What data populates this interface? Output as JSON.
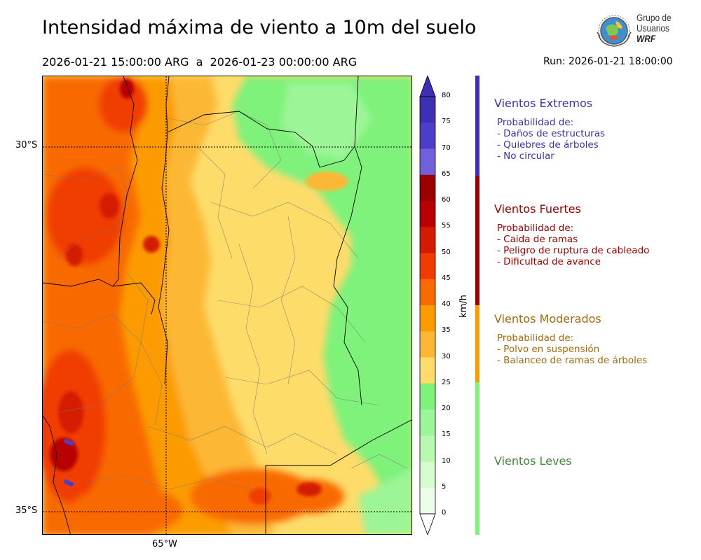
{
  "title": "Intensidad máxima de viento a 10m del suelo",
  "period": "2026-01-21 15:00:00 ARG  a  2026-01-23 00:00:00 ARG",
  "run": "Run: 2026-01-21 18:00:00",
  "logo": {
    "line1": "Grupo de",
    "line2": "Usuarios",
    "line3": "WRF"
  },
  "map": {
    "lat_labels": [
      "30°S",
      "35°S"
    ],
    "lon_labels": [
      "65°W"
    ]
  },
  "colorbar": {
    "unit": "km/h",
    "ticks": [
      "80",
      "75",
      "70",
      "65",
      "60",
      "55",
      "50",
      "45",
      "40",
      "35",
      "30",
      "25",
      "20",
      "15",
      "10",
      "5",
      "0"
    ],
    "colors": [
      "#3f2fb5",
      "#4c3ec8",
      "#7160dc",
      "#9a0000",
      "#b80000",
      "#d41a00",
      "#f03c00",
      "#f86a00",
      "#fb9b00",
      "#fcb835",
      "#fddc6a",
      "#7ef27a",
      "#9cf596",
      "#b9f8b2",
      "#d5fbcf",
      "#ecfde9"
    ]
  },
  "legend": [
    {
      "name": "Vientos Extremos",
      "color": "#3f2fb5",
      "lines": [
        "Probabilidad de:",
        "- Daños de estructuras",
        "- Quiebres de árboles",
        "- No circular"
      ]
    },
    {
      "name": "Vientos Fuertes",
      "color": "#9a0000",
      "lines": [
        "Probabilidad de:",
        "- Caida de ramas",
        "- Peligro de ruptura de cableado",
        "- Dificultad de avance"
      ]
    },
    {
      "name": "Vientos Moderados",
      "color": "#a8690a",
      "lines": [
        "Probabilidad de:",
        "- Polvo en suspensión",
        "- Balanceo de ramas de árboles"
      ]
    },
    {
      "name": "Vientos Leves",
      "color": "#3f8a3a",
      "lines": []
    }
  ]
}
